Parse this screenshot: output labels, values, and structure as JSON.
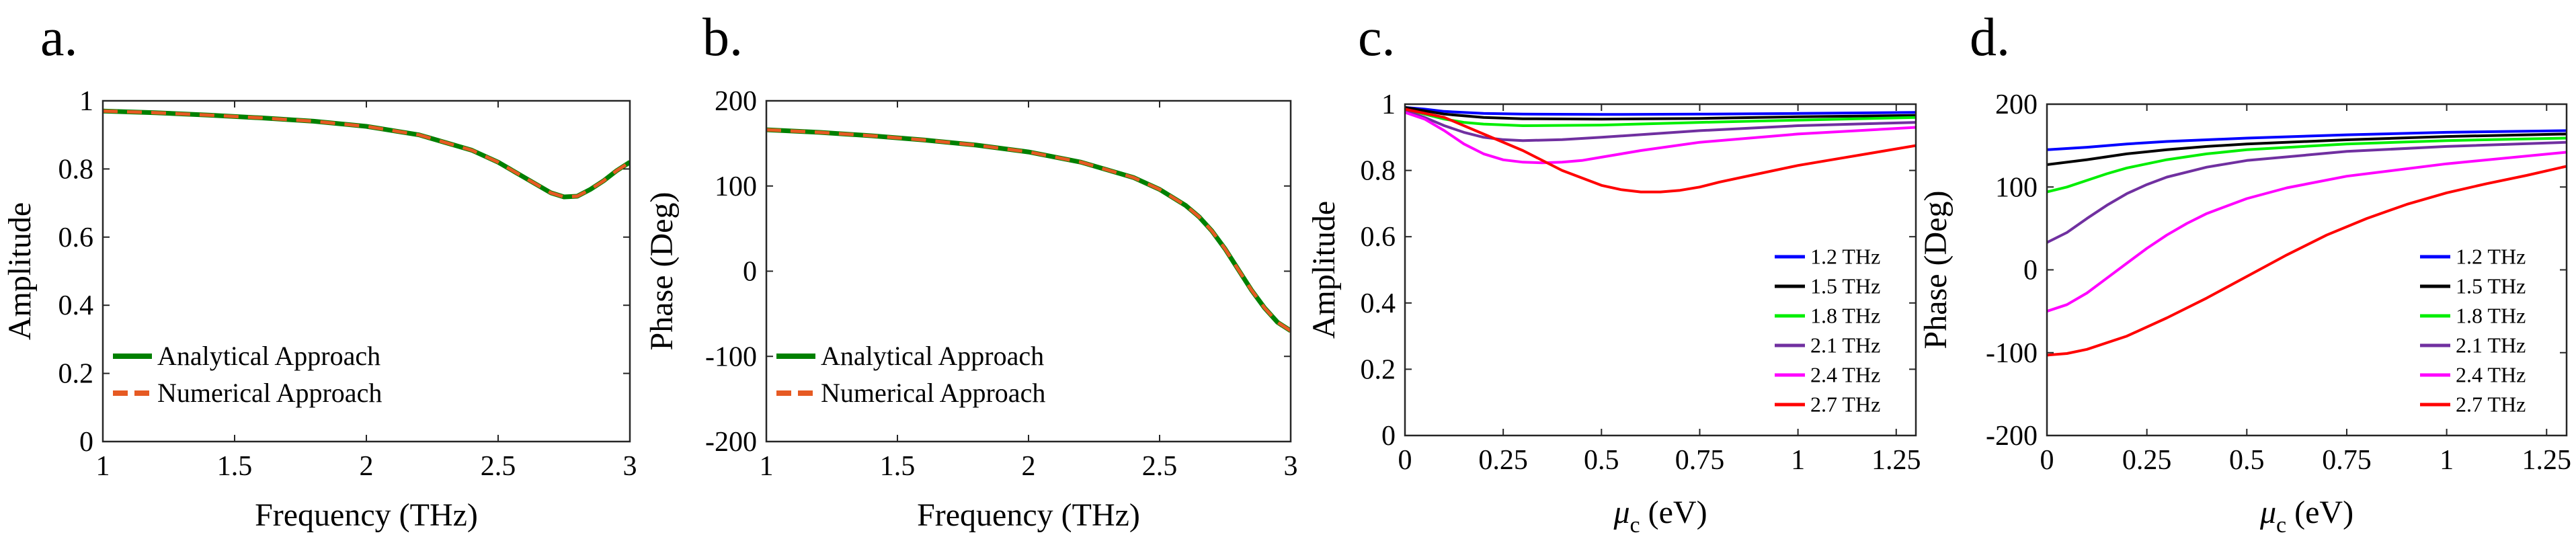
{
  "chart_data": [
    {
      "type": "line",
      "panel_label": "a.",
      "xlabel": "Frequency (THz)",
      "ylabel": "Amplitude",
      "xlim": [
        1,
        3
      ],
      "ylim": [
        0,
        1
      ],
      "xticks": [
        1,
        1.5,
        2,
        2.5,
        3
      ],
      "yticks": [
        0,
        0.2,
        0.4,
        0.6,
        0.8,
        1
      ],
      "xtick_labels": [
        "1",
        "1.5",
        "2",
        "2.5",
        "3"
      ],
      "ytick_labels": [
        "0",
        "0.2",
        "0.4",
        "0.6",
        "0.8",
        "1"
      ],
      "legend_location": "bottom-left",
      "series": [
        {
          "name": "Analytical Approach",
          "color": "#008000",
          "style": "solid",
          "x": [
            1.0,
            1.2,
            1.4,
            1.6,
            1.8,
            2.0,
            2.2,
            2.4,
            2.5,
            2.6,
            2.7,
            2.75,
            2.8,
            2.85,
            2.9,
            2.95,
            3.0
          ],
          "y": [
            0.97,
            0.965,
            0.958,
            0.95,
            0.94,
            0.925,
            0.9,
            0.855,
            0.82,
            0.775,
            0.73,
            0.718,
            0.72,
            0.74,
            0.765,
            0.795,
            0.82
          ]
        },
        {
          "name": "Numerical Approach",
          "color": "#E65A23",
          "style": "dashed",
          "x": [
            1.0,
            1.2,
            1.4,
            1.6,
            1.8,
            2.0,
            2.2,
            2.4,
            2.5,
            2.6,
            2.7,
            2.75,
            2.8,
            2.85,
            2.9,
            2.95,
            3.0
          ],
          "y": [
            0.97,
            0.965,
            0.958,
            0.95,
            0.94,
            0.925,
            0.9,
            0.855,
            0.82,
            0.775,
            0.73,
            0.718,
            0.72,
            0.74,
            0.765,
            0.795,
            0.82
          ]
        }
      ]
    },
    {
      "type": "line",
      "panel_label": "b.",
      "xlabel": "Frequency (THz)",
      "ylabel": "Phase (Deg)",
      "xlim": [
        1,
        3
      ],
      "ylim": [
        -200,
        200
      ],
      "xticks": [
        1,
        1.5,
        2,
        2.5,
        3
      ],
      "yticks": [
        -200,
        -100,
        0,
        100,
        200
      ],
      "xtick_labels": [
        "1",
        "1.5",
        "2",
        "2.5",
        "3"
      ],
      "ytick_labels": [
        "-200",
        "-100",
        "0",
        "100",
        "200"
      ],
      "legend_location": "bottom-left",
      "series": [
        {
          "name": "Analytical Approach",
          "color": "#008000",
          "style": "solid",
          "x": [
            1.0,
            1.2,
            1.4,
            1.6,
            1.8,
            2.0,
            2.2,
            2.4,
            2.5,
            2.6,
            2.65,
            2.7,
            2.75,
            2.8,
            2.85,
            2.9,
            2.95,
            3.0
          ],
          "y": [
            166,
            163,
            159,
            154,
            148,
            140,
            128,
            110,
            96,
            77,
            64,
            47,
            26,
            2,
            -22,
            -43,
            -60,
            -70
          ]
        },
        {
          "name": "Numerical Approach",
          "color": "#E65A23",
          "style": "dashed",
          "x": [
            1.0,
            1.2,
            1.4,
            1.6,
            1.8,
            2.0,
            2.2,
            2.4,
            2.5,
            2.6,
            2.65,
            2.7,
            2.75,
            2.8,
            2.85,
            2.9,
            2.95,
            3.0
          ],
          "y": [
            166,
            163,
            159,
            154,
            148,
            140,
            128,
            110,
            96,
            77,
            64,
            47,
            26,
            2,
            -22,
            -43,
            -60,
            -70
          ]
        }
      ]
    },
    {
      "type": "line",
      "panel_label": "c.",
      "xlabel_symbol": "μ",
      "xlabel_subscript": "c",
      "xlabel_unit": " (eV)",
      "ylabel": "Amplitude",
      "xlim": [
        0,
        1.3
      ],
      "ylim": [
        0,
        1
      ],
      "xticks": [
        0,
        0.25,
        0.5,
        0.75,
        1,
        1.25
      ],
      "yticks": [
        0,
        0.2,
        0.4,
        0.6,
        0.8,
        1
      ],
      "xtick_labels": [
        "0",
        "0.25",
        "0.5",
        "0.75",
        "1",
        "1.25"
      ],
      "ytick_labels": [
        "0",
        "0.2",
        "0.4",
        "0.6",
        "0.8",
        "1"
      ],
      "legend_location": "bottom-right",
      "series": [
        {
          "name": "1.2 THz",
          "color": "#0000FF",
          "x": [
            0,
            0.05,
            0.1,
            0.2,
            0.3,
            0.5,
            0.75,
            1.0,
            1.3
          ],
          "y": [
            0.99,
            0.985,
            0.978,
            0.972,
            0.97,
            0.969,
            0.97,
            0.972,
            0.975
          ]
        },
        {
          "name": "1.5 THz",
          "color": "#000000",
          "x": [
            0,
            0.05,
            0.1,
            0.2,
            0.3,
            0.5,
            0.75,
            1.0,
            1.3
          ],
          "y": [
            0.99,
            0.98,
            0.97,
            0.96,
            0.956,
            0.955,
            0.957,
            0.962,
            0.966
          ]
        },
        {
          "name": "1.8 THz",
          "color": "#00EE00",
          "x": [
            0,
            0.05,
            0.1,
            0.15,
            0.2,
            0.3,
            0.5,
            0.75,
            1.0,
            1.3
          ],
          "y": [
            0.985,
            0.97,
            0.955,
            0.945,
            0.94,
            0.935,
            0.937,
            0.945,
            0.952,
            0.96
          ]
        },
        {
          "name": "2.1 THz",
          "color": "#7030A0",
          "x": [
            0,
            0.05,
            0.1,
            0.15,
            0.2,
            0.25,
            0.3,
            0.4,
            0.5,
            0.75,
            1.0,
            1.3
          ],
          "y": [
            0.98,
            0.96,
            0.935,
            0.915,
            0.9,
            0.893,
            0.89,
            0.893,
            0.9,
            0.92,
            0.935,
            0.945
          ]
        },
        {
          "name": "2.4 THz",
          "color": "#FF00FF",
          "x": [
            0,
            0.05,
            0.1,
            0.15,
            0.2,
            0.25,
            0.3,
            0.35,
            0.4,
            0.45,
            0.5,
            0.6,
            0.75,
            1.0,
            1.3
          ],
          "y": [
            0.975,
            0.955,
            0.92,
            0.88,
            0.85,
            0.832,
            0.825,
            0.823,
            0.825,
            0.83,
            0.84,
            0.86,
            0.885,
            0.91,
            0.93
          ]
        },
        {
          "name": "2.7 THz",
          "color": "#FF0000",
          "x": [
            0,
            0.1,
            0.2,
            0.3,
            0.4,
            0.5,
            0.55,
            0.6,
            0.65,
            0.7,
            0.75,
            0.8,
            0.9,
            1.0,
            1.1,
            1.2,
            1.3
          ],
          "y": [
            0.985,
            0.96,
            0.91,
            0.86,
            0.8,
            0.755,
            0.742,
            0.735,
            0.735,
            0.74,
            0.75,
            0.765,
            0.79,
            0.815,
            0.835,
            0.855,
            0.875
          ]
        }
      ]
    },
    {
      "type": "line",
      "panel_label": "d.",
      "xlabel_symbol": "μ",
      "xlabel_subscript": "c",
      "xlabel_unit": " (eV)",
      "ylabel": "Phase (Deg)",
      "xlim": [
        0,
        1.3
      ],
      "ylim": [
        -200,
        200
      ],
      "xticks": [
        0,
        0.25,
        0.5,
        0.75,
        1,
        1.25
      ],
      "yticks": [
        -200,
        -100,
        0,
        100,
        200
      ],
      "xtick_labels": [
        "0",
        "0.25",
        "0.5",
        "0.75",
        "1",
        "1.25"
      ],
      "ytick_labels": [
        "-200",
        "-100",
        "0",
        "100",
        "200"
      ],
      "legend_location": "bottom-right",
      "series": [
        {
          "name": "1.2 THz",
          "color": "#0000FF",
          "x": [
            0,
            0.1,
            0.2,
            0.3,
            0.4,
            0.5,
            0.75,
            1.0,
            1.3
          ],
          "y": [
            145,
            148,
            152,
            155,
            157,
            159,
            163,
            166,
            168
          ]
        },
        {
          "name": "1.5 THz",
          "color": "#000000",
          "x": [
            0,
            0.1,
            0.2,
            0.3,
            0.4,
            0.5,
            0.75,
            1.0,
            1.3
          ],
          "y": [
            127,
            133,
            140,
            145,
            149,
            152,
            157,
            161,
            164
          ]
        },
        {
          "name": "1.8 THz",
          "color": "#00EE00",
          "x": [
            0,
            0.05,
            0.1,
            0.15,
            0.2,
            0.3,
            0.4,
            0.5,
            0.75,
            1.0,
            1.3
          ],
          "y": [
            94,
            100,
            108,
            116,
            123,
            133,
            140,
            145,
            152,
            156,
            159
          ]
        },
        {
          "name": "2.1 THz",
          "color": "#7030A0",
          "x": [
            0,
            0.05,
            0.1,
            0.15,
            0.2,
            0.25,
            0.3,
            0.4,
            0.5,
            0.75,
            1.0,
            1.3
          ],
          "y": [
            33,
            45,
            62,
            78,
            92,
            103,
            112,
            124,
            132,
            143,
            149,
            154
          ]
        },
        {
          "name": "2.4 THz",
          "color": "#FF00FF",
          "x": [
            0,
            0.05,
            0.1,
            0.15,
            0.2,
            0.25,
            0.3,
            0.35,
            0.4,
            0.5,
            0.6,
            0.75,
            1.0,
            1.3
          ],
          "y": [
            -50,
            -42,
            -28,
            -10,
            8,
            26,
            42,
            56,
            68,
            86,
            99,
            113,
            128,
            142
          ]
        },
        {
          "name": "2.7 THz",
          "color": "#FF0000",
          "x": [
            0,
            0.05,
            0.1,
            0.2,
            0.3,
            0.4,
            0.5,
            0.6,
            0.7,
            0.8,
            0.9,
            1.0,
            1.1,
            1.2,
            1.3
          ],
          "y": [
            -103,
            -101,
            -96,
            -80,
            -58,
            -34,
            -8,
            18,
            42,
            62,
            79,
            93,
            104,
            114,
            125
          ]
        }
      ]
    }
  ]
}
